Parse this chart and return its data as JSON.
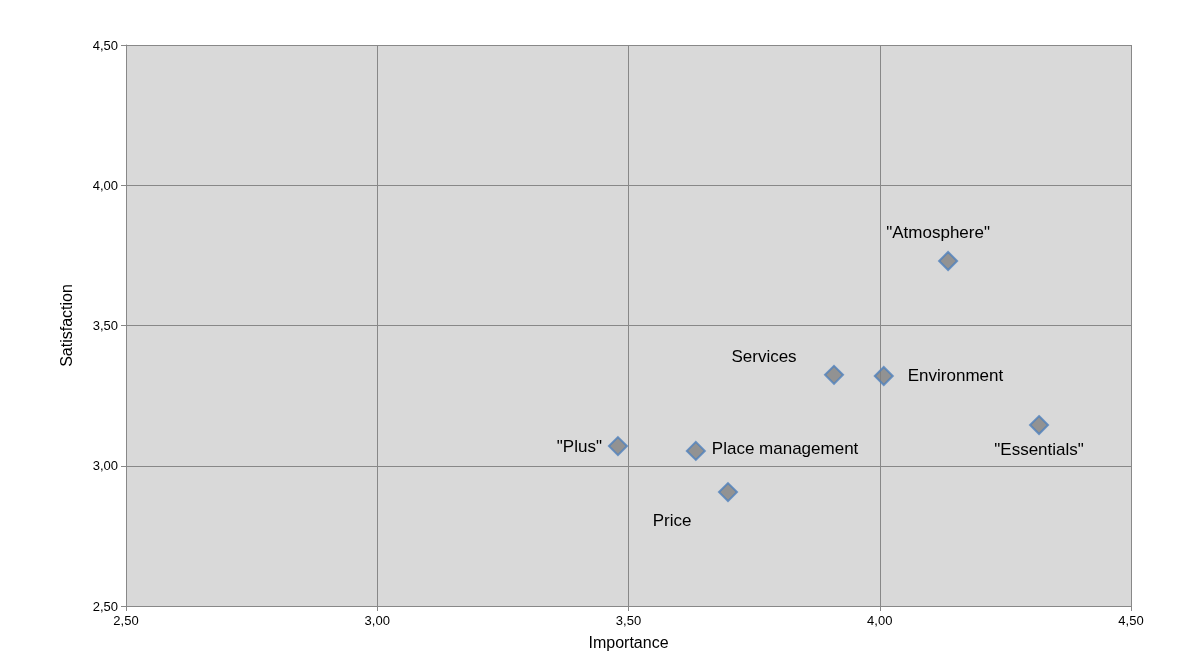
{
  "chart_data": {
    "type": "scatter",
    "xlabel": "Importance",
    "ylabel": "Satisfaction",
    "x": [
      4.136,
      3.909,
      4.008,
      4.317,
      3.479,
      3.634,
      3.698
    ],
    "series": [
      {
        "color": "#7f7f7f",
        "values": [
          3.73,
          3.324,
          3.32,
          3.145,
          3.07,
          3.053,
          2.906
        ]
      }
    ],
    "annotations": [
      {
        "text": "\"Atmosphere\"",
        "x": 4.136,
        "y": 3.73
      },
      {
        "text": "Services",
        "x": 3.909,
        "y": 3.324
      },
      {
        "text": "Environment",
        "x": 4.008,
        "y": 3.32
      },
      {
        "text": "\"Essentials\"",
        "x": 4.317,
        "y": 3.145
      },
      {
        "text": "\"Plus\"",
        "x": 3.479,
        "y": 3.07
      },
      {
        "text": "Place management",
        "x": 3.634,
        "y": 3.053
      },
      {
        "text": "Price",
        "x": 3.698,
        "y": 2.906
      }
    ],
    "xlim": [
      2.5,
      4.5
    ],
    "ylim": [
      2.5,
      4.5
    ],
    "xticks": [
      {
        "value": 2.5,
        "label": "2,50"
      },
      {
        "value": 3,
        "label": "3,00"
      },
      {
        "value": 3.5,
        "label": "3,50"
      },
      {
        "value": 4,
        "label": "4,00"
      },
      {
        "value": 4.5,
        "label": "4,50"
      }
    ],
    "yticks": [
      {
        "value": 2.5,
        "label": "2,50"
      },
      {
        "value": 3,
        "label": "3,00"
      },
      {
        "value": 3.5,
        "label": "3,50"
      },
      {
        "value": 4,
        "label": "4,00"
      },
      {
        "value": 4.5,
        "label": "4,50"
      }
    ],
    "grid": true,
    "marker": "diamond"
  }
}
